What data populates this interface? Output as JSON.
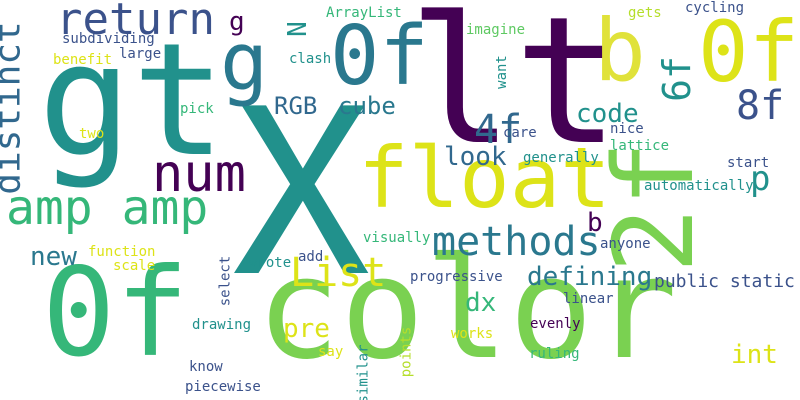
{
  "words": {
    "gt_big": "gt",
    "x": "X",
    "lt": "lt",
    "color": "color",
    "zero_f_left": "0f",
    "float": "float",
    "two_f": "2f",
    "zero_f_top": "0f",
    "zero_f_right": "0f",
    "b_top": "b",
    "g_mid": "g",
    "return": "return",
    "num": "num",
    "amp_amp": "amp amp",
    "distinct": "distinct",
    "methods": "methods",
    "list": "List",
    "four_f": "4f",
    "eight_f": "8f",
    "six_f": "6f",
    "rgb": "RGB",
    "cube": "cube",
    "code": "code",
    "look": "look",
    "defining": "defining",
    "public_static": "public static",
    "new": "new",
    "dx": "dx",
    "pre": "pre",
    "int": "int",
    "p": "p",
    "b_small": "b",
    "n": "N",
    "g_small": "g",
    "arraylist": "ArrayList",
    "subdividing": "subdividing",
    "large": "large",
    "benefit": "benefit",
    "clash": "clash",
    "imagine": "imagine",
    "want": "want",
    "gets": "gets",
    "cycling": "cycling",
    "two": "two",
    "pick": "pick",
    "care": "care",
    "nice": "nice",
    "lattice": "lattice",
    "generally": "generally",
    "start": "start",
    "automatically": "automatically",
    "function": "function",
    "scale": "scale",
    "wrote": "wrote",
    "add": "add",
    "visually": "visually",
    "anyone": "anyone",
    "progressive": "progressive",
    "select": "select",
    "linear": "linear",
    "drawing": "drawing",
    "works": "works",
    "evenly": "evenly",
    "ruling": "ruling",
    "say": "say",
    "know": "know",
    "piecewise": "piecewise",
    "similar": "similar",
    "points": "points"
  },
  "palette": {
    "dark_purple": "#440154",
    "indigo": "#3b528b",
    "slate": "#31688e",
    "teal": "#21918c",
    "sea": "#35b779",
    "green": "#5ec962",
    "lime": "#90d743",
    "yellow": "#dde318",
    "pale_yellow": "#e0e23a"
  }
}
